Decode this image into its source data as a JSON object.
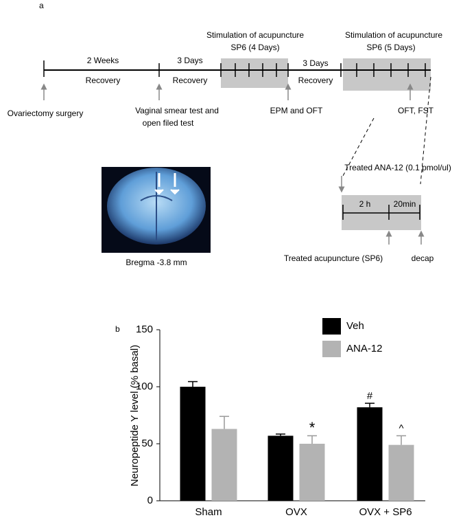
{
  "diagram": {
    "panel_label": "a",
    "timeline": {
      "period1_top": "2 Weeks",
      "period1_bottom": "Recovery",
      "period2_top": "3 Days",
      "period2_bottom": "Recovery",
      "stim1_line1": "Stimulation  of acupuncture",
      "stim1_line2": "SP6 (4 Days)",
      "period3_top": "3 Days",
      "period3_bottom": "Recovery",
      "stim2_line1": "Stimulation  of acupuncture",
      "stim2_line2": "SP6 (5 Days)"
    },
    "events": [
      "Ovariectomy surgery",
      "Vaginal smear test and",
      "open filed test",
      "EPM  and OFT",
      "OFT, FST"
    ],
    "inset": {
      "top": "Treated ANA-12 (0.1 pmol/ul)",
      "seg1": "2 h",
      "seg2": "20min",
      "bottom_left": "Treated acupuncture (SP6)",
      "bottom_right": "decap"
    },
    "image_caption": "Bregma -3.8 mm"
  },
  "chart_data": {
    "type": "bar",
    "panel_label": "b",
    "y_label": "Neuropeptide  Y  level  (% basal)",
    "categories": [
      "Sham",
      "OVX",
      "OVX + SP6"
    ],
    "series": [
      {
        "name": "Veh",
        "color": "#000000",
        "values": [
          100,
          57,
          82
        ],
        "errors": [
          4.5,
          1.5,
          3.5
        ],
        "markers": [
          null,
          null,
          "#"
        ]
      },
      {
        "name": "ANA-12",
        "color": "#b3b3b3",
        "values": [
          63,
          50,
          49
        ],
        "errors": [
          11,
          7,
          8
        ],
        "markers": [
          null,
          "*",
          "^"
        ]
      }
    ],
    "ylim": [
      0,
      150
    ],
    "yticks": [
      0,
      50,
      100,
      150
    ],
    "legend": "top-right"
  }
}
